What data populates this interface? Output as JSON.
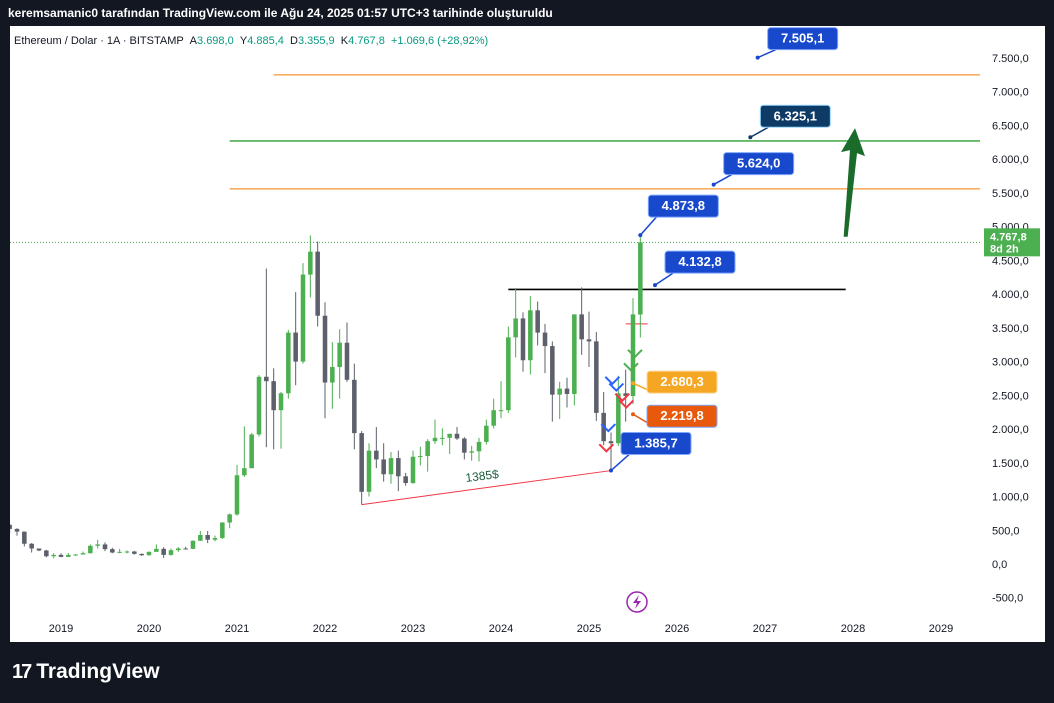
{
  "header": {
    "attribution": "keremsamanic0 tarafından TradingView.com ile Ağu 24, 2025 01:57 UTC+3 tarihinde oluşturuldu"
  },
  "symbol_info": {
    "name": "Ethereum / Dolar · 1A · BITSTAMP",
    "open_label": "A",
    "open": "3.698,0",
    "high_label": "Y",
    "high": "4.885,4",
    "low_label": "D",
    "low": "3.355,9",
    "close_label": "K",
    "close": "4.767,8",
    "change": "+1.069,6 (+28,92%)"
  },
  "footer": {
    "logo_text": "TradingView",
    "logo_mark": "17"
  },
  "colors": {
    "up": "#4caf50",
    "down": "#5d606b",
    "callout": "#1848cc",
    "callout_dark": "#0e3a66",
    "orange": "#f57c00",
    "target_green": "#4caf50",
    "arrow_green": "#1b6b2a",
    "price_tag": "#4caf50",
    "support": "#f23645"
  },
  "chart_data": {
    "type": "candlestick",
    "symbol": "ETH/USD",
    "timeframe": "1A",
    "ylim": [
      -650,
      7700
    ],
    "y_ticks": [
      -500,
      0,
      500,
      1000,
      1500,
      2000,
      2500,
      3000,
      3500,
      4000,
      4500,
      5000,
      5500,
      6000,
      6500,
      7000,
      7500
    ],
    "y_tick_labels": [
      "-500,0",
      "0,0",
      "500,0",
      "1.000,0",
      "1.500,0",
      "2.000,0",
      "2.500,0",
      "3.000,0",
      "3.500,0",
      "4.000,0",
      "4.500,0",
      "5.000,0",
      "5.500,0",
      "6.000,0",
      "6.500,0",
      "7.000,0",
      "7.500,0"
    ],
    "x_ticks": [
      2019,
      2020,
      2021,
      2022,
      2023,
      2024,
      2025,
      2026,
      2027,
      2028,
      2029
    ],
    "x_tick_labels": [
      "2019",
      "2020",
      "2021",
      "2022",
      "2023",
      "2024",
      "2025",
      "2026",
      "2027",
      "2028",
      "2029"
    ],
    "x_range": [
      "2018-06",
      "2029-10"
    ],
    "ohlc_monthly": [
      [
        "2018-06",
        580,
        600,
        460,
        520
      ],
      [
        "2018-07",
        520,
        530,
        420,
        480
      ],
      [
        "2018-08",
        480,
        480,
        260,
        300
      ],
      [
        "2018-09",
        300,
        310,
        170,
        230
      ],
      [
        "2018-10",
        230,
        230,
        190,
        200
      ],
      [
        "2018-11",
        200,
        210,
        100,
        115
      ],
      [
        "2018-12",
        115,
        160,
        85,
        135
      ],
      [
        "2019-01",
        135,
        160,
        100,
        105
      ],
      [
        "2019-02",
        105,
        165,
        105,
        135
      ],
      [
        "2019-03",
        135,
        150,
        125,
        140
      ],
      [
        "2019-04",
        140,
        185,
        140,
        160
      ],
      [
        "2019-05",
        160,
        290,
        155,
        270
      ],
      [
        "2019-06",
        270,
        360,
        230,
        290
      ],
      [
        "2019-07",
        290,
        320,
        190,
        220
      ],
      [
        "2019-08",
        220,
        240,
        160,
        170
      ],
      [
        "2019-09",
        170,
        225,
        160,
        180
      ],
      [
        "2019-10",
        180,
        200,
        155,
        185
      ],
      [
        "2019-11",
        185,
        195,
        140,
        150
      ],
      [
        "2019-12",
        150,
        155,
        120,
        130
      ],
      [
        "2020-01",
        130,
        185,
        125,
        180
      ],
      [
        "2020-02",
        180,
        290,
        180,
        225
      ],
      [
        "2020-03",
        225,
        250,
        90,
        135
      ],
      [
        "2020-04",
        135,
        230,
        125,
        205
      ],
      [
        "2020-05",
        205,
        250,
        180,
        230
      ],
      [
        "2020-06",
        230,
        255,
        215,
        225
      ],
      [
        "2020-07",
        225,
        350,
        220,
        345
      ],
      [
        "2020-08",
        345,
        490,
        340,
        430
      ],
      [
        "2020-09",
        430,
        490,
        310,
        360
      ],
      [
        "2020-10",
        360,
        420,
        335,
        385
      ],
      [
        "2020-11",
        385,
        620,
        370,
        615
      ],
      [
        "2020-12",
        615,
        750,
        530,
        735
      ],
      [
        "2021-01",
        735,
        1470,
        715,
        1315
      ],
      [
        "2021-02",
        1315,
        2040,
        1290,
        1420
      ],
      [
        "2021-03",
        1420,
        1940,
        1450,
        1920
      ],
      [
        "2021-04",
        1920,
        2800,
        1890,
        2775
      ],
      [
        "2021-05",
        2775,
        4380,
        1730,
        2710
      ],
      [
        "2021-06",
        2710,
        2900,
        1700,
        2280
      ],
      [
        "2021-07",
        2280,
        2550,
        1710,
        2530
      ],
      [
        "2021-08",
        2530,
        3470,
        2450,
        3430
      ],
      [
        "2021-09",
        3430,
        4030,
        2650,
        3000
      ],
      [
        "2021-10",
        3000,
        4460,
        2970,
        4290
      ],
      [
        "2021-11",
        4290,
        4870,
        3950,
        4630
      ],
      [
        "2021-12",
        4630,
        4780,
        3520,
        3680
      ],
      [
        "2022-01",
        3680,
        3880,
        2160,
        2690
      ],
      [
        "2022-02",
        2690,
        3290,
        2300,
        2920
      ],
      [
        "2022-03",
        2920,
        3480,
        2450,
        3280
      ],
      [
        "2022-04",
        3280,
        3580,
        2700,
        2730
      ],
      [
        "2022-05",
        2730,
        2970,
        1700,
        1940
      ],
      [
        "2022-06",
        1940,
        1970,
        880,
        1070
      ],
      [
        "2022-07",
        1070,
        1790,
        1000,
        1680
      ],
      [
        "2022-08",
        1680,
        2030,
        1420,
        1550
      ],
      [
        "2022-09",
        1550,
        1790,
        1220,
        1330
      ],
      [
        "2022-10",
        1330,
        1660,
        1190,
        1570
      ],
      [
        "2022-11",
        1570,
        1680,
        1080,
        1300
      ],
      [
        "2022-12",
        1300,
        1350,
        1160,
        1200
      ],
      [
        "2023-01",
        1200,
        1680,
        1190,
        1590
      ],
      [
        "2023-02",
        1590,
        1740,
        1460,
        1600
      ],
      [
        "2023-03",
        1600,
        1850,
        1370,
        1820
      ],
      [
        "2023-04",
        1820,
        2140,
        1780,
        1870
      ],
      [
        "2023-05",
        1870,
        2010,
        1760,
        1870
      ],
      [
        "2023-06",
        1870,
        1930,
        1630,
        1930
      ],
      [
        "2023-07",
        1930,
        2030,
        1840,
        1860
      ],
      [
        "2023-08",
        1860,
        1880,
        1550,
        1650
      ],
      [
        "2023-09",
        1650,
        1750,
        1530,
        1670
      ],
      [
        "2023-10",
        1670,
        1870,
        1520,
        1810
      ],
      [
        "2023-11",
        1810,
        2140,
        1770,
        2050
      ],
      [
        "2023-12",
        2050,
        2450,
        2010,
        2280
      ],
      [
        "2024-01",
        2280,
        2710,
        2160,
        2280
      ],
      [
        "2024-02",
        2280,
        3520,
        2240,
        3360
      ],
      [
        "2024-03",
        3360,
        4090,
        3060,
        3640
      ],
      [
        "2024-04",
        3640,
        3730,
        2850,
        3020
      ],
      [
        "2024-05",
        3020,
        3970,
        2810,
        3760
      ],
      [
        "2024-06",
        3760,
        3890,
        3240,
        3430
      ],
      [
        "2024-07",
        3430,
        3560,
        2830,
        3230
      ],
      [
        "2024-08",
        3230,
        3300,
        2110,
        2510
      ],
      [
        "2024-09",
        2510,
        2700,
        2150,
        2600
      ],
      [
        "2024-10",
        2600,
        2760,
        2320,
        2520
      ],
      [
        "2024-11",
        2520,
        3670,
        2350,
        3700
      ],
      [
        "2024-12",
        3700,
        4100,
        3100,
        3330
      ],
      [
        "2025-01",
        3330,
        3740,
        2920,
        3300
      ],
      [
        "2025-02",
        3300,
        3440,
        2120,
        2240
      ],
      [
        "2025-03",
        2240,
        2550,
        1760,
        1820
      ],
      [
        "2025-04",
        1820,
        1950,
        1385,
        1790
      ],
      [
        "2025-05",
        1790,
        2790,
        1750,
        2530
      ],
      [
        "2025-06",
        2530,
        2880,
        2110,
        2490
      ],
      [
        "2025-07",
        2490,
        3940,
        2370,
        3700
      ],
      [
        "2025-08",
        3698,
        4885.4,
        3355.9,
        4767.8
      ]
    ],
    "current_price": 4767.8,
    "current_price_label": "4.767,8",
    "countdown_label": "8d 2h",
    "horizontal_levels": [
      {
        "name": "orange-top",
        "value": 7250,
        "start": "2021-06",
        "end": "2029-10",
        "color": "#f57c00"
      },
      {
        "name": "green-target",
        "value": 6270,
        "start": "2020-12",
        "end": "2029-10",
        "color": "#4caf50"
      },
      {
        "name": "orange-mid",
        "value": 5560,
        "start": "2020-12",
        "end": "2029-10",
        "color": "#f57c00"
      },
      {
        "name": "resistance-black",
        "value": 4070,
        "start": "2024-02",
        "end": "2027-12",
        "color": "#000000"
      },
      {
        "name": "red-short",
        "value": 3560,
        "start": "2025-06",
        "end": "2025-09",
        "color": "#f23645"
      }
    ],
    "trendline": {
      "from": [
        "2022-06",
        880
      ],
      "to": [
        "2025-04",
        1385
      ],
      "label": "1385$",
      "color": "#f23645"
    },
    "callouts": [
      {
        "name": "callout-7505",
        "label": "7.505,1",
        "anchor": [
          "2027-00",
          7505
        ],
        "style": "blue"
      },
      {
        "name": "callout-6325",
        "label": "6.325,1",
        "anchor": [
          "2026-11",
          6325
        ],
        "style": "dark"
      },
      {
        "name": "callout-5624",
        "label": "5.624,0",
        "anchor": [
          "2026-06",
          5624
        ],
        "style": "blue"
      },
      {
        "name": "callout-4873",
        "label": "4.873,8",
        "anchor": [
          "2025-08",
          4873.8
        ],
        "style": "blue"
      },
      {
        "name": "callout-4132",
        "label": "4.132,8",
        "anchor": [
          "2025-10",
          4132.8
        ],
        "style": "blue"
      },
      {
        "name": "callout-2680",
        "label": "2.680,3",
        "anchor": [
          "2025-07",
          2680.3
        ],
        "style": "orange"
      },
      {
        "name": "callout-2219",
        "label": "2.219,8",
        "anchor": [
          "2025-07",
          2219.8
        ],
        "style": "redorange"
      },
      {
        "name": "callout-1385",
        "label": "1.385,7",
        "anchor": [
          "2025-04",
          1385.7
        ],
        "style": "blue"
      }
    ],
    "up_arrow": {
      "from": [
        "2027-12",
        4850
      ],
      "to": [
        "2028-01",
        6460
      ],
      "color": "#1b6b2a"
    }
  }
}
